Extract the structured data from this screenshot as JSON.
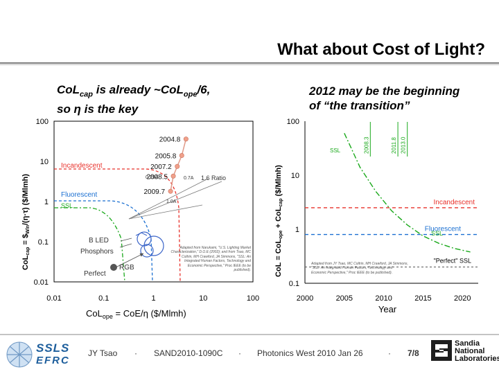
{
  "slide": {
    "title": "What about Cost of Light?",
    "caption_left_line1_a": "CoL",
    "caption_left_line1_sub": "cap",
    "caption_left_line1_b": " is already ~CoL",
    "caption_left_line1_sub2": "ope",
    "caption_left_line1_c": "/6,",
    "caption_left_line2": "so η is the key",
    "caption_right_line1": "2012 may be the beginning",
    "caption_right_line2": "of “the transition”"
  },
  "footer": {
    "author": "JY Tsao",
    "report": "SAND2010-1090C",
    "event": "Photonics West 2010 Jan 26",
    "page": "7/8",
    "sep": "·",
    "logo_top": "SSLS",
    "logo_bottom": "EFRC",
    "lab_line1": "Sandia",
    "lab_line2": "National",
    "lab_line3": "Laboratories"
  },
  "colors": {
    "axis": "#000000",
    "incandescent": "#e8302a",
    "fluorescent": "#1a6fd1",
    "ssl_green": "#19a81a",
    "markers": "#f0a08a",
    "marker_line": "#e09a88",
    "led_circle": "#3a64c8"
  },
  "chart_data": [
    {
      "type": "scatter",
      "title": "",
      "xlabel": "CoL_ope = CoE/η ($/Mlmh)",
      "ylabel": "CoL_cap = $_W/n/(η·τ) ($/Mlmh)",
      "xscale": "log",
      "yscale": "log",
      "xlim": [
        0.01,
        100
      ],
      "ylim": [
        0.01,
        100
      ],
      "x_tick_labels": [
        "0.01",
        "0.1",
        "1",
        "10",
        "100"
      ],
      "y_tick_labels": [
        "0.01",
        "0.1",
        "1",
        "10",
        "100"
      ],
      "series": [
        {
          "name": "SSL trajectory",
          "points": [
            {
              "label": "2004.8",
              "x": 4.5,
              "y": 36
            },
            {
              "label": "2005.8",
              "x": 3.7,
              "y": 14
            },
            {
              "label": "2007.2",
              "x": 3.0,
              "y": 7.5
            },
            {
              "label": "2008.5",
              "x": 2.5,
              "y": 4.3
            },
            {
              "label": "2009.7",
              "x": 2.2,
              "y": 1.8
            }
          ]
        },
        {
          "name": "Incandescent",
          "region_label": "Incandescent",
          "corner": {
            "x": 2.5,
            "y": 0.01
          }
        },
        {
          "name": "Fluorescent",
          "region_label": "Fluorescent",
          "corner": {
            "x": 0.8,
            "y": 0.01
          }
        },
        {
          "name": "SSL",
          "region_label": "SSL",
          "corner": {
            "x": 0.4,
            "y": 0.01
          }
        }
      ],
      "annotations": [
        "0.25A",
        "0.7A",
        "1.6 Ratio",
        "1.0A",
        "B LED",
        "Phosphors",
        "RGB",
        "Perfect",
        "Adapted from Narukami, \"U.S. Lighting Market Characterization,\" D.O.E (2002); and from Tsao, MC Coltrin, MH Crawford, JA Simmons, \"SSL: An Integrated Human Factors, Technology and Economic Perspective,\" Proc IEEE (to be published)."
      ]
    },
    {
      "type": "line",
      "title": "",
      "xlabel": "Year",
      "ylabel": "CoL = CoL_ope + CoL_cap ($/Mlmh)",
      "yscale": "log",
      "xlim": [
        2000,
        2022
      ],
      "ylim": [
        0.1,
        100
      ],
      "x_tick_labels": [
        "2000",
        "2005",
        "2010",
        "2015",
        "2020"
      ],
      "y_tick_labels": [
        "0.1",
        "1",
        "10",
        "100"
      ],
      "series": [
        {
          "name": "Incandescent",
          "level": 2.5
        },
        {
          "name": "Fluorescent",
          "level": 0.8
        },
        {
          "name": "SSL",
          "x": [
            2005,
            2007,
            2009,
            2011,
            2013,
            2015,
            2017,
            2019,
            2021
          ],
          "y": [
            60,
            14,
            5,
            2.2,
            1.2,
            0.75,
            0.55,
            0.44,
            0.38
          ]
        },
        {
          "name": "\"Perfect\" SSL",
          "level": 0.2
        }
      ],
      "markers": [
        {
          "label": "2008.3",
          "x": 2008.3
        },
        {
          "label": "2011.8",
          "x": 2011.8
        },
        {
          "label": "2013.0",
          "x": 2013.0
        }
      ],
      "annotations": [
        "Incandescent",
        "Fluorescent",
        "SSL",
        "\"Perfect\" SSL",
        "Adapted from JY Tsao, MC Coltrin, MH Crawford, JA Simmons, \"SSL: An Integrated Human Factors, Technology and Economic Perspective,\" Proc IEEE (to be published)."
      ]
    }
  ]
}
